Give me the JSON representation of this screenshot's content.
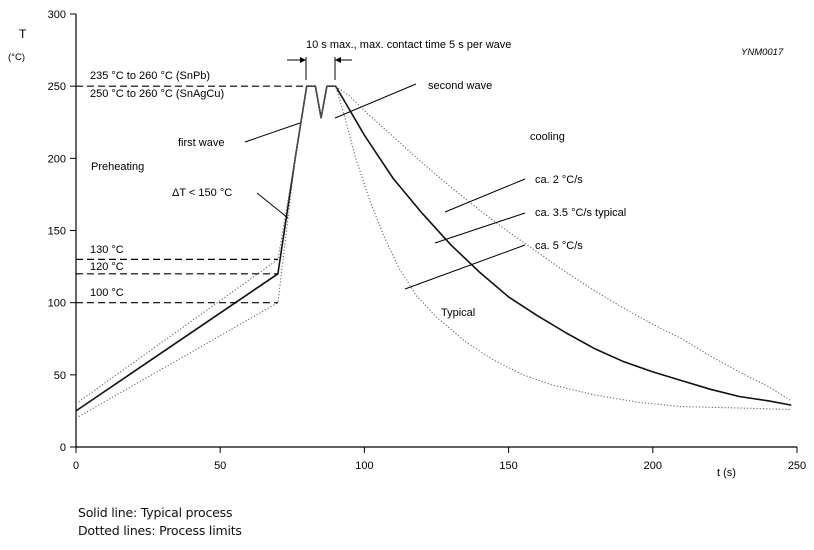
{
  "chart_data": {
    "type": "line",
    "figure_id": "YNM0017",
    "xlabel": "t (s)",
    "ylabel": "T",
    "ylabel_unit": "(°C)",
    "xlim": [
      0,
      250
    ],
    "ylim": [
      0,
      300
    ],
    "xticks": [
      0,
      50,
      100,
      150,
      200,
      250
    ],
    "yticks": [
      0,
      50,
      100,
      150,
      200,
      250,
      300
    ],
    "series": [
      {
        "style": "solid",
        "points": [
          [
            0,
            25
          ],
          [
            70,
            120
          ],
          [
            76,
            200
          ],
          [
            80,
            250
          ],
          [
            83,
            250
          ],
          [
            85,
            228
          ],
          [
            87,
            250
          ],
          [
            90,
            250
          ],
          [
            93,
            240
          ],
          [
            100,
            216
          ],
          [
            110,
            186
          ],
          [
            120,
            162
          ],
          [
            130,
            140
          ],
          [
            140,
            121
          ],
          [
            150,
            104
          ],
          [
            160,
            91
          ],
          [
            170,
            79
          ],
          [
            180,
            68
          ],
          [
            190,
            59
          ],
          [
            200,
            52
          ],
          [
            210,
            46
          ],
          [
            220,
            40
          ],
          [
            230,
            35
          ],
          [
            240,
            32
          ],
          [
            248,
            29
          ]
        ]
      },
      {
        "style": "dotted",
        "points": [
          [
            0,
            30
          ],
          [
            70,
            130
          ],
          [
            76,
            200
          ],
          [
            80,
            250
          ],
          [
            83,
            250
          ],
          [
            85,
            228
          ],
          [
            87,
            250
          ],
          [
            90,
            250
          ],
          [
            95,
            243
          ],
          [
            100,
            233
          ],
          [
            110,
            215
          ],
          [
            120,
            197
          ],
          [
            130,
            180
          ],
          [
            140,
            164
          ],
          [
            150,
            149
          ],
          [
            160,
            135
          ],
          [
            170,
            121
          ],
          [
            180,
            108
          ],
          [
            190,
            96
          ],
          [
            200,
            85
          ],
          [
            210,
            75
          ],
          [
            220,
            63
          ],
          [
            230,
            52
          ],
          [
            240,
            42
          ],
          [
            248,
            32
          ]
        ]
      },
      {
        "style": "dotted",
        "points": [
          [
            0,
            20
          ],
          [
            70,
            100
          ],
          [
            76,
            200
          ],
          [
            80,
            250
          ],
          [
            83,
            250
          ],
          [
            85,
            228
          ],
          [
            87,
            250
          ],
          [
            90,
            250
          ],
          [
            93,
            230
          ],
          [
            97,
            200
          ],
          [
            102,
            170
          ],
          [
            107,
            145
          ],
          [
            112,
            124
          ],
          [
            118,
            105
          ],
          [
            125,
            90
          ],
          [
            135,
            73
          ],
          [
            145,
            60
          ],
          [
            155,
            50
          ],
          [
            165,
            43
          ],
          [
            180,
            36
          ],
          [
            195,
            31
          ],
          [
            210,
            28
          ],
          [
            230,
            27
          ],
          [
            248,
            26
          ]
        ]
      }
    ],
    "reference_lines": [
      {
        "label": "235 °C  to  260 °C (SnPb)",
        "y": 250
      },
      {
        "label": "250 °C  to  260 °C (SnAgCu)",
        "y": 250
      },
      {
        "label": "130 °C",
        "y": 130
      },
      {
        "label": "120 °C",
        "y": 120
      },
      {
        "label": "100 °C",
        "y": 100
      }
    ],
    "annotations": {
      "contact_time": "10 s max., max. contact time 5 s per wave",
      "second_wave": "second wave",
      "first_wave": "first wave",
      "preheating": "Preheating",
      "delta_t": "ΔT < 150 °C",
      "cooling": "cooling",
      "rate_2": "ca. 2 °C/s",
      "rate_3_5": "ca. 3.5 °C/s typical",
      "rate_5": "ca. 5 °C/s",
      "typical": "Typical"
    }
  },
  "notes": {
    "solid": "Solid line: Typical process",
    "dotted": "Dotted lines: Process limits"
  }
}
